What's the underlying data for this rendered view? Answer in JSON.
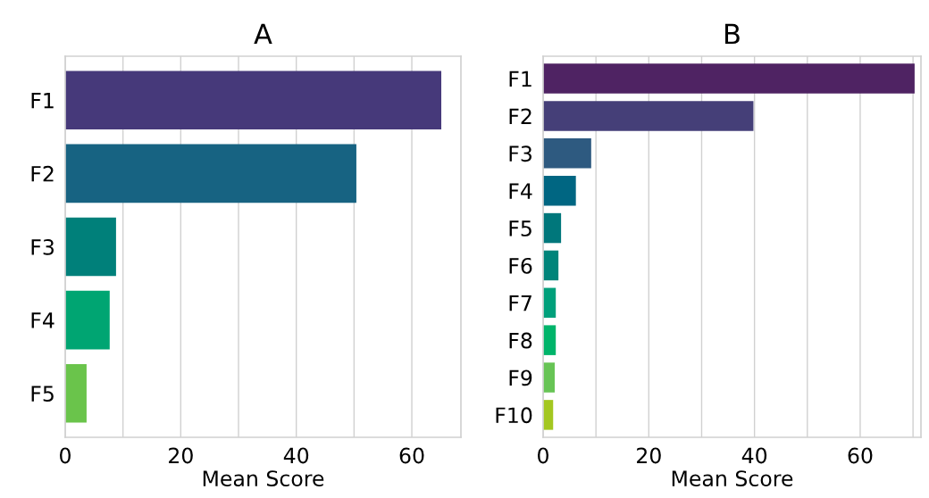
{
  "chart_data": [
    {
      "type": "bar",
      "orientation": "horizontal",
      "title": "A",
      "xlabel": "Mean Score",
      "categories": [
        "F1",
        "F2",
        "F3",
        "F4",
        "F5"
      ],
      "values": [
        65.1,
        50.4,
        8.8,
        7.7,
        3.7
      ],
      "colors": [
        "#46397a",
        "#176382",
        "#00807a",
        "#00a572",
        "#6ac44b"
      ],
      "xlim": [
        0,
        68.5
      ],
      "xticks": [
        0,
        {
          "value": 10,
          "label": null
        },
        20,
        {
          "value": 30,
          "label": null
        },
        40,
        {
          "value": 50,
          "label": null
        },
        60
      ],
      "grid": "x"
    },
    {
      "type": "bar",
      "orientation": "horizontal",
      "title": "B",
      "xlabel": "Mean Score",
      "categories": [
        "F1",
        "F2",
        "F3",
        "F4",
        "F5",
        "F6",
        "F7",
        "F8",
        "F9",
        "F10"
      ],
      "values": [
        70.3,
        39.8,
        9.1,
        6.2,
        3.4,
        2.9,
        2.4,
        2.4,
        2.2,
        1.9
      ],
      "colors": [
        "#4f2363",
        "#453f78",
        "#2e5a80",
        "#006682",
        "#00777b",
        "#00847a",
        "#00a07b",
        "#00b46a",
        "#67c455",
        "#a3c720"
      ],
      "xlim": [
        0,
        71.5
      ],
      "xticks": [
        0,
        {
          "value": 10,
          "label": null
        },
        20,
        {
          "value": 30,
          "label": null
        },
        40,
        {
          "value": 50,
          "label": null
        },
        60,
        {
          "value": 70,
          "label": null
        }
      ],
      "grid": "x"
    }
  ]
}
